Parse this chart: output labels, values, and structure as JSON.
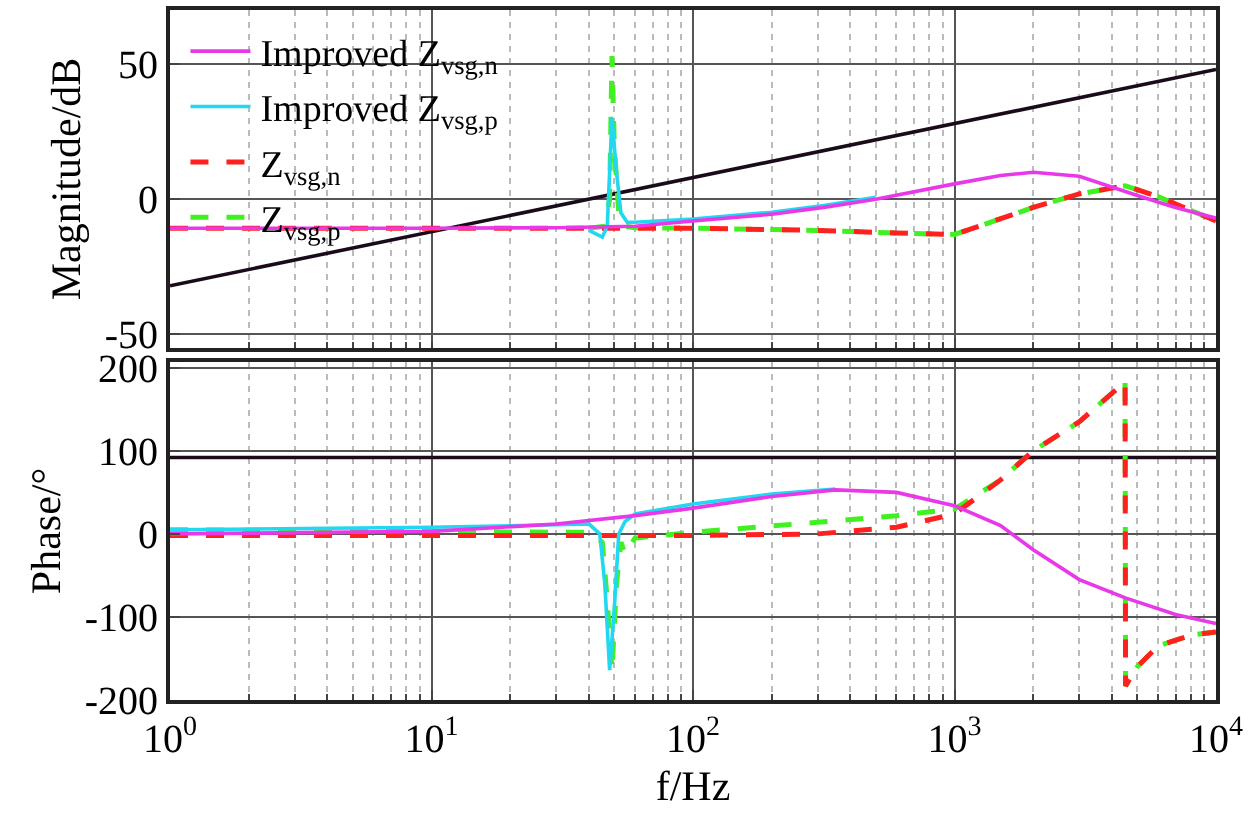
{
  "chart_data": [
    {
      "type": "line",
      "ylabel": "Magnitude/dB",
      "xlim": [
        1,
        10000
      ],
      "xticks": [
        {
          "value": 1,
          "label": null
        },
        {
          "value": 10,
          "label": null
        },
        {
          "value": 100,
          "label": null
        },
        {
          "value": 1000,
          "label": null
        },
        {
          "value": 10000,
          "label": null
        }
      ],
      "ylim": [
        -55,
        70
      ],
      "yticks": [
        -50,
        0,
        50
      ],
      "grid": true,
      "log": "x",
      "legend": "top left",
      "tick_labels": "y",
      "line_style": "solid",
      "marker": "none",
      "series": [
        {
          "name": "Improved Z$_{vsg,n}$",
          "color": "#e838e8",
          "x": [
            1,
            10,
            30,
            60,
            100,
            200,
            316,
            500,
            1000,
            1500,
            2000,
            3000,
            5000,
            7000,
            10000
          ],
          "values": [
            -10.7,
            -10.7,
            -10.5,
            -10,
            -8,
            -5.5,
            -3,
            0,
            5.7,
            8.8,
            10,
            8.5,
            1.4,
            -3,
            -7
          ]
        },
        {
          "name": "Improved Z$_{vsg,p}$",
          "color": "#20d8f0",
          "x": [
            40,
            45,
            47,
            49,
            51,
            53,
            56,
            60,
            100,
            200,
            316,
            500
          ],
          "values": [
            -11.5,
            -14,
            -10,
            30,
            10,
            -5,
            -8.5,
            -8.5,
            -7.3,
            -4.8,
            -2.3,
            0.7
          ]
        },
        {
          "name": "Z$_{vsg,n}$",
          "color": "#ff2020",
          "line_style": "dashed",
          "x": [
            1,
            10,
            100,
            300,
            600,
            1000,
            1300,
            2000,
            3000,
            4500,
            6000,
            10000
          ],
          "values": [
            -10.7,
            -10.7,
            -10.7,
            -11.5,
            -12.5,
            -13,
            -9.3,
            -3,
            2,
            5,
            1,
            -8
          ]
        },
        {
          "name": "Z$_{vsg,p}$",
          "color": "#40f020",
          "line_style": "dashed",
          "x": [
            40,
            46,
            48,
            49,
            50,
            52,
            55,
            60,
            100,
            300,
            600,
            1000,
            1300,
            2000,
            3000,
            4500,
            6000,
            10000
          ],
          "values": [
            -10.7,
            -10,
            0,
            53,
            20,
            -5,
            -10,
            -10.5,
            -10.7,
            -11.5,
            -12.5,
            -13,
            -9.3,
            -3,
            2,
            5,
            1,
            -8
          ]
        },
        {
          "color": "#1a0a1a",
          "x": [
            1,
            10000
          ],
          "values": [
            -32,
            48
          ]
        }
      ]
    },
    {
      "type": "line",
      "ylabel": "Phase/°",
      "xlabel": "f/Hz",
      "xlim": [
        1,
        10000
      ],
      "xticks": [
        {
          "value": 1,
          "label": "10$^{0}$"
        },
        {
          "value": 10,
          "label": "10$^{1}$"
        },
        {
          "value": 100,
          "label": "10$^{2}$"
        },
        {
          "value": 1000,
          "label": "10$^{3}$"
        },
        {
          "value": 10000,
          "label": "10$^{4}$"
        }
      ],
      "ylim": [
        -200,
        207
      ],
      "yticks": [
        -200,
        -100,
        0,
        100,
        200
      ],
      "grid": true,
      "log": "x",
      "legend": false,
      "line_style": "solid",
      "marker": "none",
      "series": [
        {
          "color": "#e838e8",
          "x": [
            1,
            10,
            30,
            60,
            100,
            200,
            350,
            600,
            1000,
            1500,
            2000,
            3000,
            4500,
            7000,
            10000
          ],
          "values": [
            0,
            3,
            12,
            22,
            31,
            45,
            53,
            50,
            34,
            10,
            -19,
            -55,
            -77,
            -97,
            -108
          ]
        },
        {
          "color": "#20d8f0",
          "x": [
            1,
            10,
            30,
            40,
            44,
            46,
            48,
            50,
            52,
            55,
            60,
            100,
            200,
            350
          ],
          "values": [
            5,
            8,
            11,
            12,
            0,
            -60,
            -164,
            -90,
            0,
            15,
            24,
            36,
            48,
            54
          ]
        },
        {
          "color": "#ff2020",
          "line_style": "dashed",
          "x": [
            1,
            10,
            100,
            300,
            600,
            1000,
            1500,
            2000,
            3000,
            4490,
            4510,
            5000,
            6000,
            8000,
            10000
          ],
          "values": [
            -2,
            -2,
            -2,
            0,
            8,
            24,
            65,
            100,
            135,
            183,
            -183,
            -160,
            -135,
            -122,
            -118
          ]
        },
        {
          "color": "#40f020",
          "line_style": "dashed",
          "x": [
            1,
            10,
            30,
            40,
            45,
            47,
            49,
            51,
            53,
            55,
            60,
            100,
            300,
            600,
            1000,
            1500,
            2000,
            3000,
            4490,
            4510,
            5000,
            6000,
            8000,
            10000
          ],
          "values": [
            5,
            3,
            2,
            2,
            -10,
            -80,
            -165,
            -60,
            -10,
            -24,
            -5,
            2,
            14,
            22,
            30,
            65,
            100,
            135,
            183,
            -183,
            -160,
            -135,
            -122,
            -118
          ]
        },
        {
          "color": "#1a0a1a",
          "x": [
            1,
            10000
          ],
          "values": [
            92,
            92
          ]
        }
      ]
    }
  ]
}
